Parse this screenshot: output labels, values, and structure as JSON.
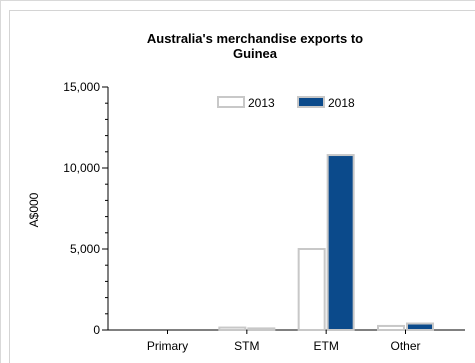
{
  "chart_data": {
    "type": "bar",
    "title_line1": "Australia's merchandise exports to",
    "title_line2": "Guinea",
    "ylabel": "A$000",
    "xlabel": "",
    "categories": [
      "Primary",
      "STM",
      "ETM",
      "Other"
    ],
    "series": [
      {
        "name": "2013",
        "values": [
          0,
          150,
          5000,
          250
        ],
        "fill": "#ffffff",
        "stroke": "#c8c8c8"
      },
      {
        "name": "2018",
        "values": [
          0,
          100,
          10800,
          400
        ],
        "fill": "#0b4a8b",
        "stroke": "#c8c8c8"
      }
    ],
    "ylim": [
      0,
      15000
    ],
    "yticks": [
      0,
      5000,
      10000,
      15000
    ],
    "ytick_labels": [
      "0",
      "5,000",
      "10,000",
      "15,000"
    ],
    "legend_position": "top-right",
    "grid": false
  }
}
